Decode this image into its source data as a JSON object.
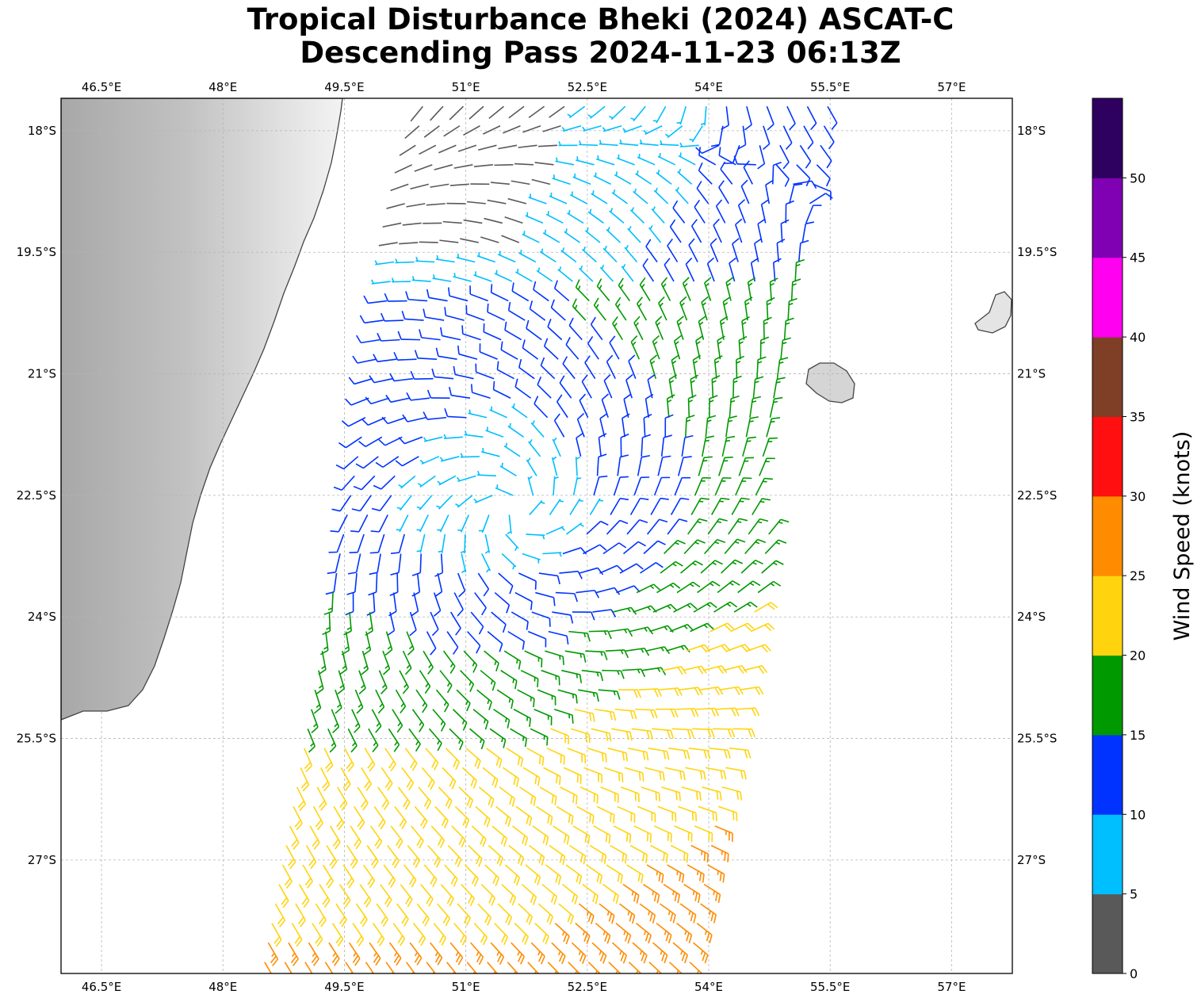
{
  "title": {
    "line1": "Tropical Disturbance Bheki (2024) ASCAT-C",
    "line2": "Descending Pass 2024-11-23 06:13Z"
  },
  "map": {
    "lon_range": [
      46.0,
      57.75
    ],
    "lat_range": [
      -28.4,
      -17.6
    ],
    "lon_ticks": [
      {
        "value": 46.5,
        "label": "46.5°E"
      },
      {
        "value": 48.0,
        "label": "48°E"
      },
      {
        "value": 49.5,
        "label": "49.5°E"
      },
      {
        "value": 51.0,
        "label": "51°E"
      },
      {
        "value": 52.5,
        "label": "52.5°E"
      },
      {
        "value": 54.0,
        "label": "54°E"
      },
      {
        "value": 55.5,
        "label": "55.5°E"
      },
      {
        "value": 57.0,
        "label": "57°E"
      }
    ],
    "lat_ticks": [
      {
        "value": -18.0,
        "label": "18°S"
      },
      {
        "value": -19.5,
        "label": "19.5°S"
      },
      {
        "value": -21.0,
        "label": "21°S"
      },
      {
        "value": -22.5,
        "label": "22.5°S"
      },
      {
        "value": -24.0,
        "label": "24°S"
      },
      {
        "value": -25.5,
        "label": "25.5°S"
      },
      {
        "value": -27.0,
        "label": "27°S"
      }
    ],
    "gridlines": true,
    "land_features": [
      "Madagascar",
      "Réunion",
      "Mauritius"
    ],
    "storm_center": {
      "lon": 51.6,
      "lat": -22.7
    }
  },
  "colorbar": {
    "label": "Wind Speed (knots)",
    "tick_values": [
      0,
      5,
      10,
      15,
      20,
      25,
      30,
      35,
      40,
      45,
      50
    ],
    "bins": [
      {
        "min": 0,
        "max": 5,
        "color": "#595959"
      },
      {
        "min": 5,
        "max": 10,
        "color": "#00bfff"
      },
      {
        "min": 10,
        "max": 15,
        "color": "#0033ff"
      },
      {
        "min": 15,
        "max": 20,
        "color": "#009900"
      },
      {
        "min": 20,
        "max": 25,
        "color": "#ffd40f"
      },
      {
        "min": 25,
        "max": 30,
        "color": "#ff8c00"
      },
      {
        "min": 30,
        "max": 35,
        "color": "#ff0f0f"
      },
      {
        "min": 35,
        "max": 40,
        "color": "#7f3f26"
      },
      {
        "min": 40,
        "max": 45,
        "color": "#ff00f0"
      },
      {
        "min": 45,
        "max": 50,
        "color": "#8000b3"
      },
      {
        "min": 50,
        "max": 55,
        "color": "#2e005f"
      }
    ]
  }
}
